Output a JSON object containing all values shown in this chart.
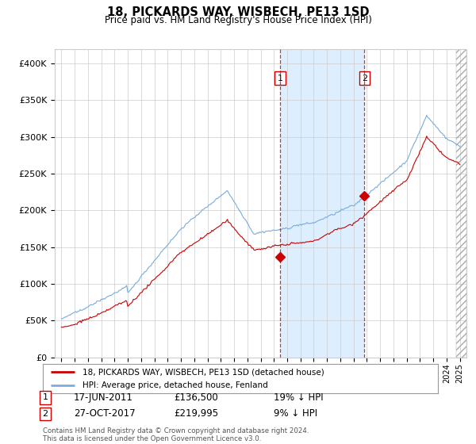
{
  "title": "18, PICKARDS WAY, WISBECH, PE13 1SD",
  "subtitle": "Price paid vs. HM Land Registry's House Price Index (HPI)",
  "legend_line1": "18, PICKARDS WAY, WISBECH, PE13 1SD (detached house)",
  "legend_line2": "HPI: Average price, detached house, Fenland",
  "transaction1_date": "17-JUN-2011",
  "transaction1_price": 136500,
  "transaction1_label": "19% ↓ HPI",
  "transaction2_date": "27-OCT-2017",
  "transaction2_price": 219995,
  "transaction2_label": "9% ↓ HPI",
  "transaction1_x": 2011.46,
  "transaction2_x": 2017.82,
  "footnote1": "Contains HM Land Registry data © Crown copyright and database right 2024.",
  "footnote2": "This data is licensed under the Open Government Licence v3.0.",
  "red_color": "#cc0000",
  "blue_color": "#7aacdc",
  "shade_color": "#ddeeff",
  "vline_color": "#cc0000",
  "ylim_max": 420000,
  "ylim_min": 0,
  "xlim_min": 1994.5,
  "xlim_max": 2025.5
}
